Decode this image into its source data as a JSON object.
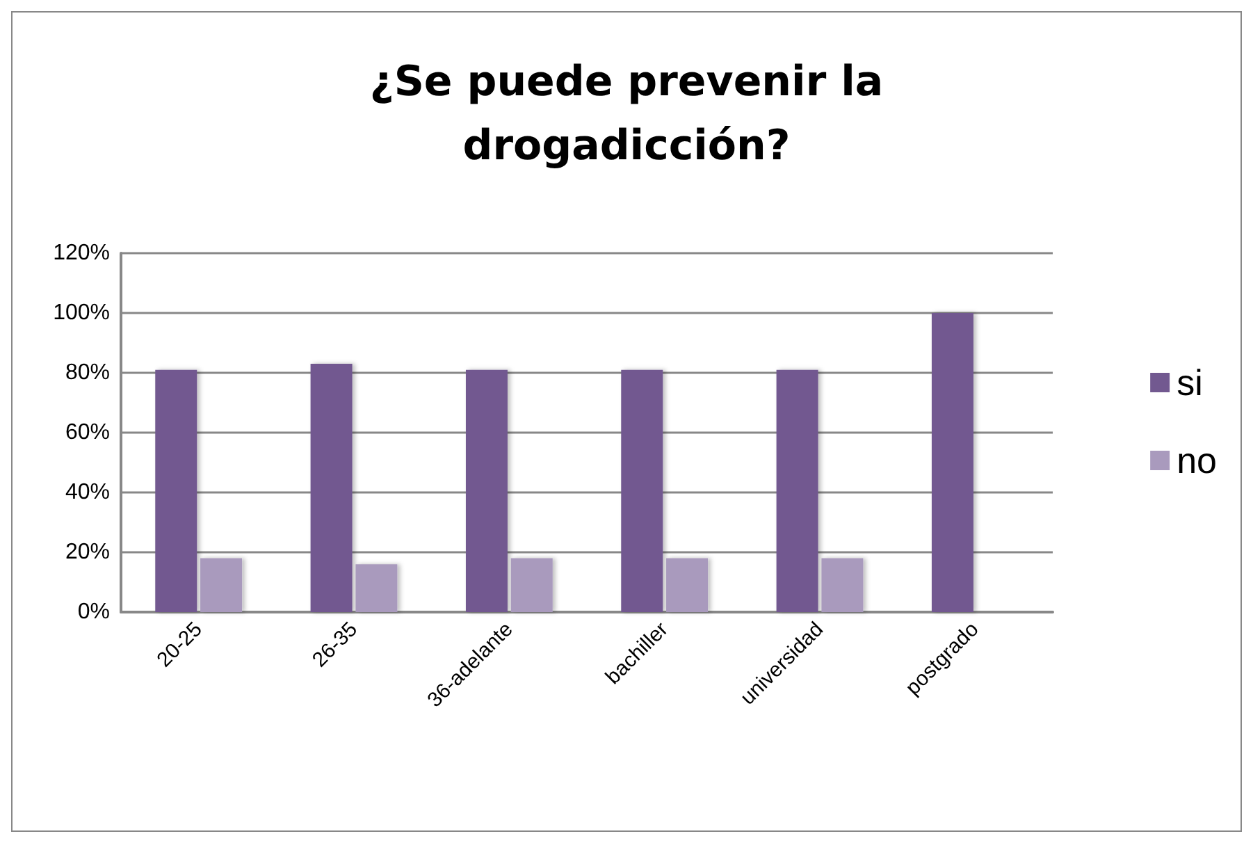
{
  "chart_data": {
    "type": "bar",
    "title": "¿Se puede prevenir la\ndrogadicción?",
    "categories": [
      "20-25",
      "26-35",
      "36-adelante",
      "bachiller",
      "universidad",
      "postgrado"
    ],
    "series": [
      {
        "name": "si",
        "color": "#725990",
        "values": [
          81,
          83,
          81,
          81,
          81,
          100
        ]
      },
      {
        "name": "no",
        "color": "#a99abd",
        "values": [
          18,
          16,
          18,
          18,
          18,
          0
        ]
      }
    ],
    "ylim": [
      0,
      120
    ],
    "yticks": [
      {
        "value": 0,
        "label": "0%"
      },
      {
        "value": 20,
        "label": "20%"
      },
      {
        "value": 40,
        "label": "40%"
      },
      {
        "value": 60,
        "label": "60%"
      },
      {
        "value": 80,
        "label": "80%"
      },
      {
        "value": 100,
        "label": "100%"
      },
      {
        "value": 120,
        "label": "120%"
      }
    ],
    "grid": "y",
    "legend": "right"
  }
}
